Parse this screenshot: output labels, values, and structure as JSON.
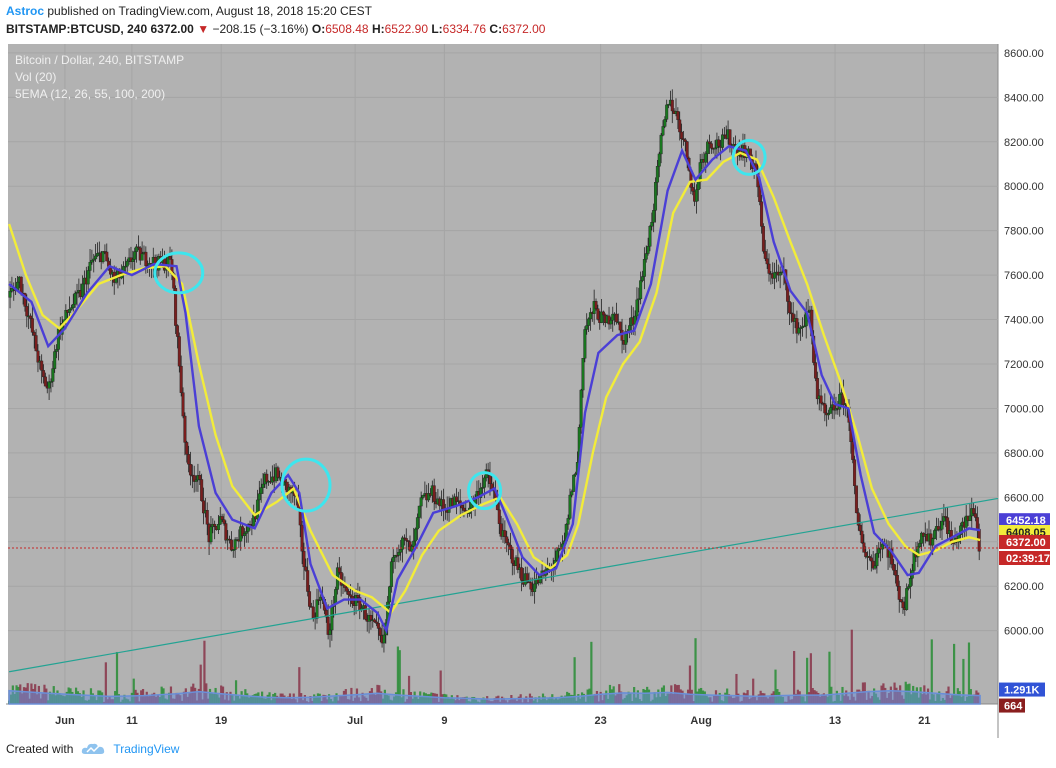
{
  "header": {
    "author": "Astroc",
    "published_text": " published on TradingView.com, August 18, 2018 15:20 CEST",
    "symbol": "BITSTAMP:BTCUSD, 240",
    "last": "6372.00",
    "change": "−208.15 (−3.16%)",
    "o_label": "O:",
    "o_value": "6508.48",
    "h_label": "H:",
    "h_value": "6522.90",
    "l_label": "L:",
    "l_value": "6334.76",
    "c_label": "C:",
    "c_value": "6372.00"
  },
  "legend": {
    "title": "Bitcoin / Dollar, 240, BITSTAMP",
    "vol": "Vol (20)",
    "ema": "5EMA (12, 26, 55, 100, 200)"
  },
  "footer": {
    "created_with": "Created with",
    "brand": "TradingView"
  },
  "colors": {
    "plot_bg": "#b2b2b2",
    "grid": "#a5a5a5",
    "ema_fast": "#4b3fd6",
    "ema_slow": "#f2ec3a",
    "trendline": "#22a393",
    "circle": "#3ee6ee",
    "candle_up": "#19771f",
    "candle_down": "#7a1e1e",
    "vol_up": "#2f8e3b",
    "vol_down": "#8a3a4e",
    "vol_ma": "#6a8fd8"
  },
  "chart_data": {
    "type": "candlestick",
    "title": "Bitcoin / Dollar, 240, BITSTAMP",
    "x_ticks": [
      {
        "label": "Jun",
        "t": 5
      },
      {
        "label": "11",
        "t": 11
      },
      {
        "label": "19",
        "t": 19
      },
      {
        "label": "Jul",
        "t": 31
      },
      {
        "label": "9",
        "t": 39
      },
      {
        "label": "23",
        "t": 53
      },
      {
        "label": "Aug",
        "t": 62
      },
      {
        "label": "13",
        "t": 74
      },
      {
        "label": "21",
        "t": 82
      }
    ],
    "x_range": [
      -0.1,
      88.6
    ],
    "y_range": [
      5670,
      8640
    ],
    "y_ticks": [
      "6000.00",
      "6200.00",
      "6400.00",
      "6600.00",
      "6800.00",
      "7000.00",
      "7200.00",
      "7400.00",
      "7600.00",
      "7800.00",
      "8000.00",
      "8200.00",
      "8400.00",
      "8600.00"
    ],
    "price_path": [
      [
        0.0,
        7500
      ],
      [
        1.0,
        7580
      ],
      [
        2.0,
        7380
      ],
      [
        3.0,
        7150
      ],
      [
        3.6,
        7080
      ],
      [
        4.5,
        7340
      ],
      [
        5.5,
        7450
      ],
      [
        6.5,
        7520
      ],
      [
        7.5,
        7660
      ],
      [
        8.5,
        7700
      ],
      [
        9.5,
        7570
      ],
      [
        10.5,
        7620
      ],
      [
        11.3,
        7700
      ],
      [
        12.5,
        7670
      ],
      [
        13.5,
        7650
      ],
      [
        14.6,
        7660
      ],
      [
        15.2,
        7280
      ],
      [
        16.0,
        6760
      ],
      [
        17.2,
        6650
      ],
      [
        18.0,
        6420
      ],
      [
        19.0,
        6500
      ],
      [
        20.0,
        6380
      ],
      [
        21.0,
        6450
      ],
      [
        22.0,
        6500
      ],
      [
        23.0,
        6680
      ],
      [
        24.0,
        6700
      ],
      [
        25.0,
        6640
      ],
      [
        25.8,
        6600
      ],
      [
        26.5,
        6300
      ],
      [
        27.3,
        6050
      ],
      [
        28.0,
        6180
      ],
      [
        28.7,
        5980
      ],
      [
        29.5,
        6250
      ],
      [
        30.5,
        6150
      ],
      [
        31.5,
        6120
      ],
      [
        32.3,
        6050
      ],
      [
        33.0,
        6000
      ],
      [
        33.6,
        5920
      ],
      [
        34.5,
        6360
      ],
      [
        35.5,
        6400
      ],
      [
        36.2,
        6350
      ],
      [
        37.0,
        6580
      ],
      [
        38.0,
        6620
      ],
      [
        39.0,
        6550
      ],
      [
        40.0,
        6580
      ],
      [
        41.0,
        6540
      ],
      [
        41.8,
        6590
      ],
      [
        42.8,
        6700
      ],
      [
        43.5,
        6620
      ],
      [
        44.3,
        6420
      ],
      [
        45.0,
        6350
      ],
      [
        46.0,
        6250
      ],
      [
        47.0,
        6200
      ],
      [
        48.0,
        6250
      ],
      [
        48.8,
        6300
      ],
      [
        49.8,
        6380
      ],
      [
        50.5,
        6650
      ],
      [
        51.0,
        6750
      ],
      [
        51.6,
        7350
      ],
      [
        52.5,
        7450
      ],
      [
        53.5,
        7380
      ],
      [
        54.3,
        7450
      ],
      [
        55.0,
        7300
      ],
      [
        56.0,
        7400
      ],
      [
        57.0,
        7650
      ],
      [
        57.8,
        7900
      ],
      [
        58.5,
        8200
      ],
      [
        59.2,
        8400
      ],
      [
        60.0,
        8300
      ],
      [
        60.8,
        8150
      ],
      [
        61.5,
        7920
      ],
      [
        62.0,
        8100
      ],
      [
        62.8,
        8200
      ],
      [
        63.8,
        8190
      ],
      [
        64.5,
        8220
      ],
      [
        65.2,
        8170
      ],
      [
        66.0,
        8160
      ],
      [
        67.0,
        8080
      ],
      [
        67.8,
        7650
      ],
      [
        68.6,
        7600
      ],
      [
        69.5,
        7600
      ],
      [
        70.3,
        7380
      ],
      [
        71.0,
        7360
      ],
      [
        71.8,
        7440
      ],
      [
        72.5,
        7050
      ],
      [
        73.3,
        6950
      ],
      [
        74.0,
        7000
      ],
      [
        74.8,
        7050
      ],
      [
        75.4,
        6950
      ],
      [
        76.0,
        6500
      ],
      [
        76.8,
        6350
      ],
      [
        77.5,
        6300
      ],
      [
        78.2,
        6400
      ],
      [
        79.0,
        6350
      ],
      [
        79.6,
        6200
      ],
      [
        80.3,
        6100
      ],
      [
        81.0,
        6300
      ],
      [
        81.8,
        6450
      ],
      [
        82.6,
        6400
      ],
      [
        83.3,
        6480
      ],
      [
        84.0,
        6500
      ],
      [
        84.6,
        6380
      ],
      [
        85.3,
        6450
      ],
      [
        86.0,
        6500
      ],
      [
        86.6,
        6560
      ],
      [
        87.0,
        6372
      ]
    ],
    "ema_fast_path": [
      [
        0.0,
        7560
      ],
      [
        2.0,
        7480
      ],
      [
        3.5,
        7280
      ],
      [
        5.0,
        7360
      ],
      [
        7.0,
        7520
      ],
      [
        9.0,
        7640
      ],
      [
        11.0,
        7600
      ],
      [
        13.0,
        7650
      ],
      [
        15.0,
        7640
      ],
      [
        15.8,
        7430
      ],
      [
        17.0,
        6920
      ],
      [
        18.5,
        6620
      ],
      [
        20.0,
        6500
      ],
      [
        22.0,
        6460
      ],
      [
        23.5,
        6620
      ],
      [
        25.0,
        6700
      ],
      [
        26.0,
        6620
      ],
      [
        27.0,
        6300
      ],
      [
        28.5,
        6100
      ],
      [
        30.0,
        6140
      ],
      [
        31.5,
        6140
      ],
      [
        33.0,
        6080
      ],
      [
        33.8,
        6000
      ],
      [
        34.8,
        6230
      ],
      [
        36.5,
        6380
      ],
      [
        38.0,
        6530
      ],
      [
        40.0,
        6560
      ],
      [
        42.0,
        6600
      ],
      [
        43.5,
        6640
      ],
      [
        44.5,
        6520
      ],
      [
        46.0,
        6330
      ],
      [
        47.5,
        6250
      ],
      [
        49.0,
        6280
      ],
      [
        50.5,
        6480
      ],
      [
        51.6,
        6980
      ],
      [
        52.8,
        7250
      ],
      [
        54.5,
        7330
      ],
      [
        56.0,
        7350
      ],
      [
        57.5,
        7560
      ],
      [
        59.0,
        7980
      ],
      [
        60.3,
        8160
      ],
      [
        61.5,
        8030
      ],
      [
        63.0,
        8120
      ],
      [
        64.5,
        8180
      ],
      [
        66.0,
        8160
      ],
      [
        67.2,
        8040
      ],
      [
        68.5,
        7750
      ],
      [
        70.0,
        7530
      ],
      [
        71.5,
        7430
      ],
      [
        72.8,
        7150
      ],
      [
        74.0,
        7020
      ],
      [
        75.2,
        7000
      ],
      [
        76.3,
        6700
      ],
      [
        77.5,
        6440
      ],
      [
        79.0,
        6360
      ],
      [
        80.5,
        6250
      ],
      [
        81.5,
        6260
      ],
      [
        83.0,
        6380
      ],
      [
        84.5,
        6420
      ],
      [
        86.0,
        6460
      ],
      [
        87.0,
        6452
      ]
    ],
    "ema_slow_path": [
      [
        0.0,
        7830
      ],
      [
        1.5,
        7600
      ],
      [
        3.0,
        7420
      ],
      [
        4.5,
        7360
      ],
      [
        6.0,
        7440
      ],
      [
        8.0,
        7560
      ],
      [
        10.0,
        7600
      ],
      [
        12.0,
        7630
      ],
      [
        14.0,
        7640
      ],
      [
        15.5,
        7560
      ],
      [
        17.0,
        7200
      ],
      [
        18.5,
        6880
      ],
      [
        20.0,
        6650
      ],
      [
        22.0,
        6520
      ],
      [
        24.0,
        6580
      ],
      [
        25.5,
        6640
      ],
      [
        27.0,
        6450
      ],
      [
        29.0,
        6250
      ],
      [
        31.0,
        6180
      ],
      [
        32.5,
        6150
      ],
      [
        34.2,
        6080
      ],
      [
        35.5,
        6180
      ],
      [
        37.0,
        6340
      ],
      [
        38.5,
        6450
      ],
      [
        40.5,
        6520
      ],
      [
        42.5,
        6570
      ],
      [
        44.0,
        6600
      ],
      [
        45.5,
        6480
      ],
      [
        47.0,
        6330
      ],
      [
        48.5,
        6280
      ],
      [
        50.0,
        6340
      ],
      [
        51.0,
        6480
      ],
      [
        52.3,
        6800
      ],
      [
        53.5,
        7050
      ],
      [
        55.0,
        7200
      ],
      [
        56.5,
        7300
      ],
      [
        58.0,
        7520
      ],
      [
        59.5,
        7880
      ],
      [
        61.0,
        8020
      ],
      [
        62.5,
        8030
      ],
      [
        64.0,
        8110
      ],
      [
        65.5,
        8150
      ],
      [
        67.0,
        8120
      ],
      [
        68.5,
        7950
      ],
      [
        70.0,
        7750
      ],
      [
        71.5,
        7560
      ],
      [
        73.0,
        7330
      ],
      [
        74.5,
        7120
      ],
      [
        76.0,
        6880
      ],
      [
        77.3,
        6640
      ],
      [
        78.8,
        6480
      ],
      [
        80.3,
        6380
      ],
      [
        81.5,
        6340
      ],
      [
        83.0,
        6360
      ],
      [
        84.5,
        6400
      ],
      [
        86.0,
        6420
      ],
      [
        87.0,
        6408
      ]
    ],
    "trendline": [
      [
        0.0,
        5815
      ],
      [
        88.6,
        6595
      ]
    ],
    "annotations": [
      {
        "t": 15.2,
        "y": 7610,
        "rx": 24,
        "ry": 20
      },
      {
        "t": 26.6,
        "y": 6655,
        "rx": 24,
        "ry": 26
      },
      {
        "t": 42.6,
        "y": 6630,
        "rx": 16,
        "ry": 18
      },
      {
        "t": 66.3,
        "y": 8130,
        "rx": 16,
        "ry": 17
      }
    ],
    "volume": {
      "max": 1800,
      "ma_path": [
        [
          0.0,
          300
        ],
        [
          3.0,
          250
        ],
        [
          6.0,
          210
        ],
        [
          9.0,
          170
        ],
        [
          12.0,
          190
        ],
        [
          15.0,
          230
        ],
        [
          17.0,
          280
        ],
        [
          19.0,
          230
        ],
        [
          21.0,
          190
        ],
        [
          23.0,
          150
        ],
        [
          25.0,
          140
        ],
        [
          27.0,
          150
        ],
        [
          29.0,
          180
        ],
        [
          31.0,
          210
        ],
        [
          33.0,
          240
        ],
        [
          35.0,
          200
        ],
        [
          37.0,
          170
        ],
        [
          39.0,
          140
        ],
        [
          41.0,
          130
        ],
        [
          43.0,
          110
        ],
        [
          45.0,
          120
        ],
        [
          47.0,
          130
        ],
        [
          49.0,
          140
        ],
        [
          51.0,
          170
        ],
        [
          53.0,
          220
        ],
        [
          55.0,
          250
        ],
        [
          57.0,
          240
        ],
        [
          59.0,
          260
        ],
        [
          61.0,
          220
        ],
        [
          63.0,
          200
        ],
        [
          65.0,
          190
        ],
        [
          67.0,
          170
        ],
        [
          69.0,
          190
        ],
        [
          71.0,
          200
        ],
        [
          73.0,
          200
        ],
        [
          75.0,
          240
        ],
        [
          77.0,
          280
        ],
        [
          79.0,
          300
        ],
        [
          81.0,
          280
        ],
        [
          83.0,
          240
        ],
        [
          85.0,
          210
        ],
        [
          87.0,
          190
        ]
      ]
    },
    "price_labels": [
      {
        "text": "6452.18",
        "value": 6452.18,
        "role": "ema_fast"
      },
      {
        "text": "6408.05",
        "value": 6408.05,
        "role": "ema_slow"
      },
      {
        "text": "6372.00",
        "value": 6372.0,
        "role": "last"
      },
      {
        "text": "02:39:17",
        "value": 6300,
        "role": "countdown"
      }
    ],
    "volume_labels": [
      {
        "text": "1.291K",
        "value": 1291,
        "role": "vol_ma"
      },
      {
        "text": "664",
        "value": 664,
        "role": "vol_last"
      }
    ]
  }
}
